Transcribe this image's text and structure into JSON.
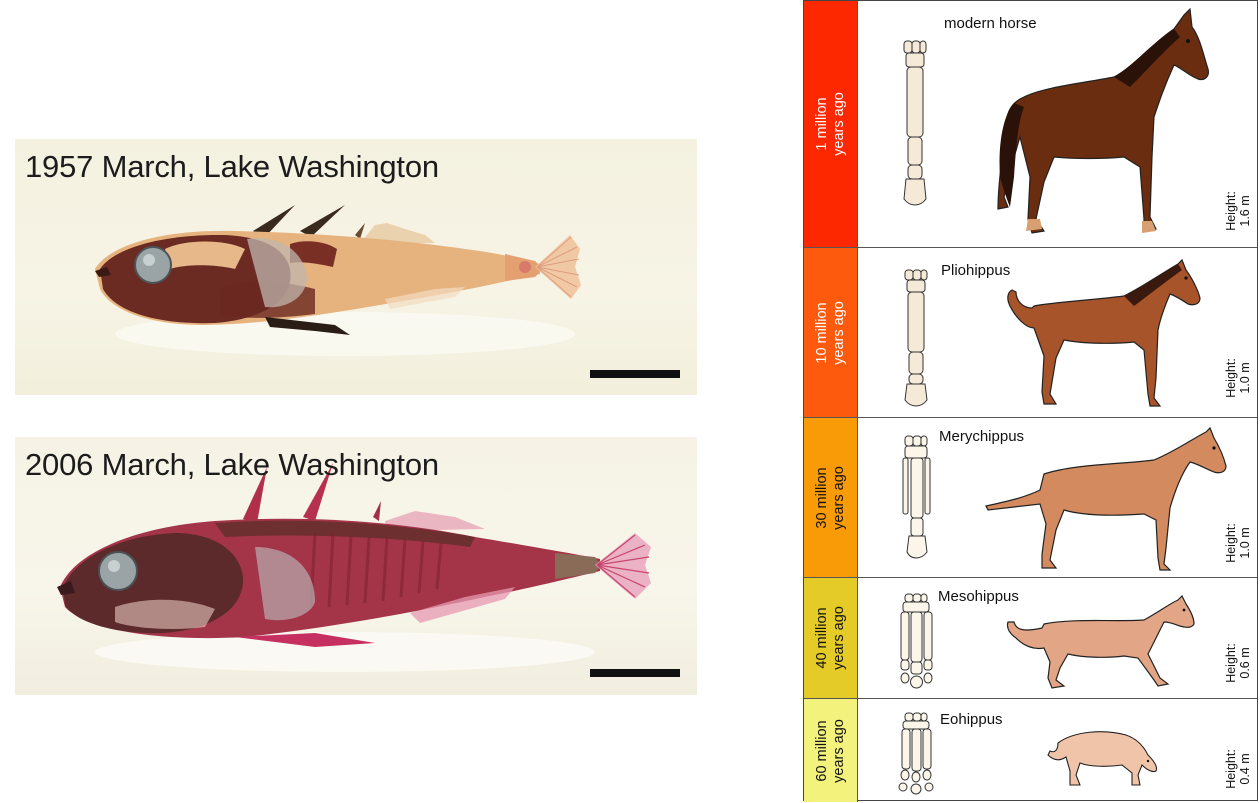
{
  "photos": {
    "top_caption": "1957 March, Lake Washington",
    "bottom_caption": "2006 March, Lake Washington"
  },
  "horse_chart": {
    "rows": [
      {
        "era_line1": "1 million",
        "era_line2": "years ago",
        "name": "modern horse",
        "height_label": "Height:",
        "height_value": "1.6 m",
        "era_color": "#fe2800",
        "body_color": "#6b2d10"
      },
      {
        "era_line1": "10 million",
        "era_line2": "years ago",
        "name": "Pliohippus",
        "height_label": "Height:",
        "height_value": "1.0 m",
        "era_color": "#fd5a0e",
        "body_color": "#a8542b"
      },
      {
        "era_line1": "30 million",
        "era_line2": "years ago",
        "name": "Merychippus",
        "height_label": "Height:",
        "height_value": "1.0 m",
        "era_color": "#f99a07",
        "body_color": "#d28a5e"
      },
      {
        "era_line1": "40 million",
        "era_line2": "years ago",
        "name": "Mesohippus",
        "height_label": "Height:",
        "height_value": "0.6 m",
        "era_color": "#e5cb28",
        "body_color": "#e2a585"
      },
      {
        "era_line1": "60 million",
        "era_line2": "years ago",
        "name": "Eohippus",
        "height_label": "Height:",
        "height_value": "0.4 m",
        "era_color": "#f3f27c",
        "body_color": "#f0c4a8"
      }
    ]
  }
}
